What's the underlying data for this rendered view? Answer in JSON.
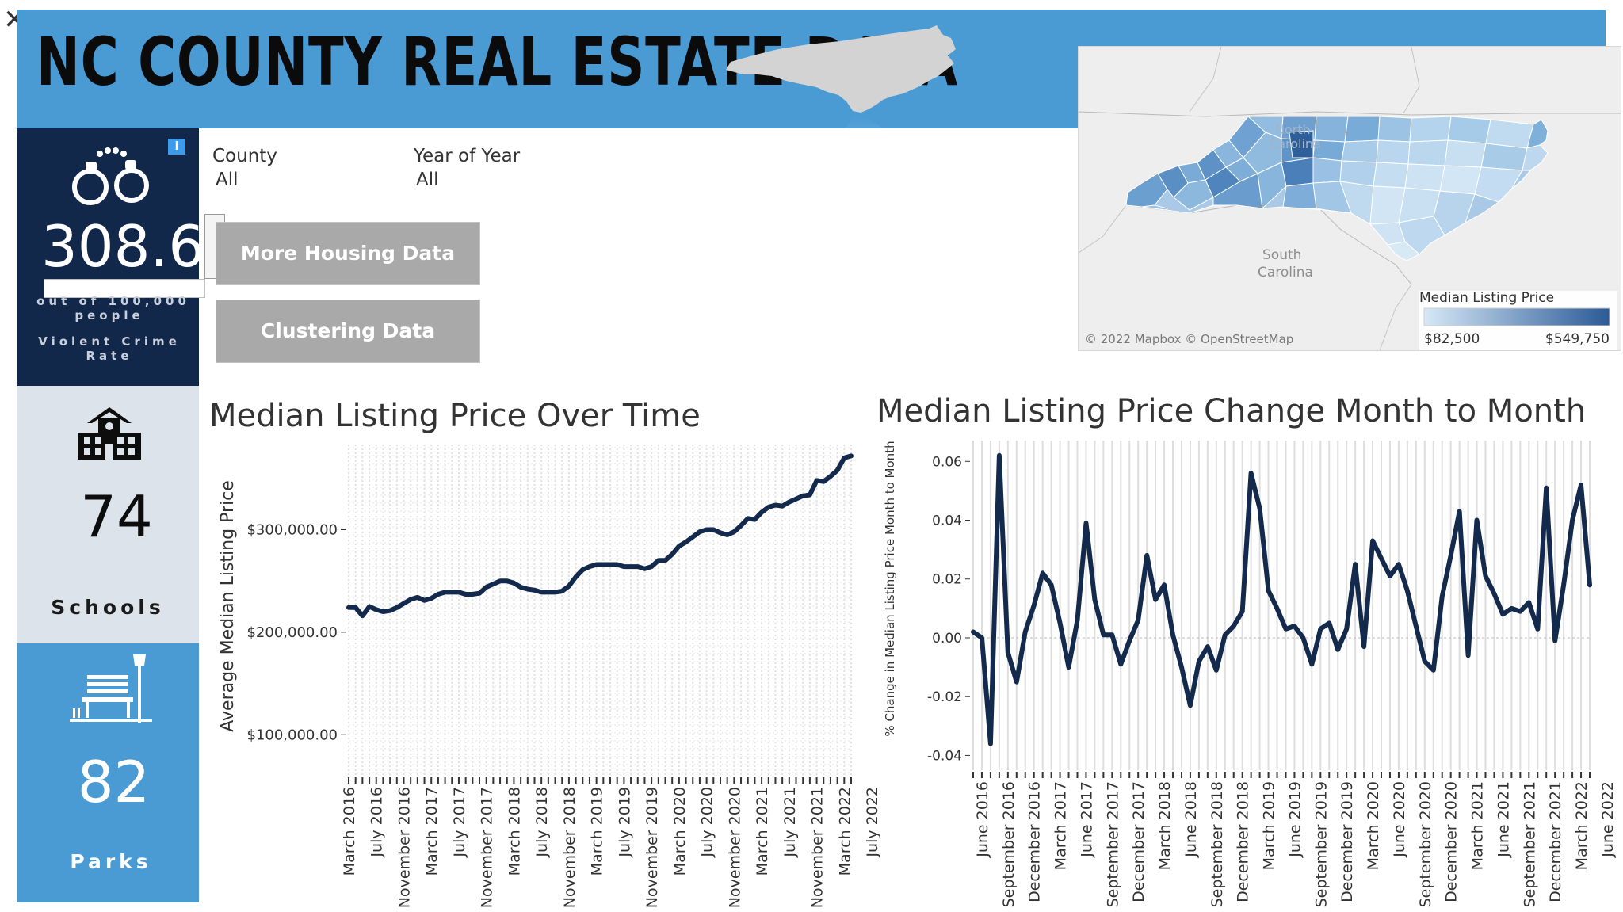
{
  "window": {
    "close_glyph": "✕"
  },
  "header": {
    "title": "NC COUNTY REAL ESTATE DATA"
  },
  "colors": {
    "banner": "#4a9ad4",
    "navy": "#12284b",
    "light_tile": "#dde3ea",
    "line": "#142a4c",
    "button": "#a9a9a9",
    "info_badge": "#3d9be9"
  },
  "icons": {
    "crime": "handcuffs-icon",
    "schools": "school-building-icon",
    "parks": "park-bench-icon",
    "info": "info-icon",
    "state": "north-carolina-silhouette-icon",
    "close": "close-icon"
  },
  "tiles": {
    "crime": {
      "value": "308.6",
      "subtitle_line1": "out of 100,000",
      "subtitle_line2": "people",
      "label": "Violent Crime Rate",
      "info_glyph": "i"
    },
    "schools": {
      "value": "74",
      "label": "Schools"
    },
    "parks": {
      "value": "82",
      "label": "Parks"
    }
  },
  "filters": [
    {
      "label": "County",
      "value": "All"
    },
    {
      "label": "Year of Year",
      "value": "All"
    }
  ],
  "buttons": {
    "housing": "More Housing Data",
    "clustering": "Clustering Data"
  },
  "map": {
    "labels": {
      "north": "North",
      "carolina": "Carolina",
      "south": "South",
      "south_carolina": "Carolina"
    },
    "attribution": "© 2022 Mapbox © OpenStreetMap",
    "legend_title": "Median Listing Price",
    "legend_min": "$82,500",
    "legend_max": "$549,750"
  },
  "chart_data": [
    {
      "type": "line",
      "title": "Median Listing Price Over Time",
      "xlabel": "",
      "ylabel": "Average Median Listing Price",
      "ylim": [
        60000,
        380000
      ],
      "yticks": [
        "$100,000.00",
        "$200,000.00",
        "$300,000.00"
      ],
      "ytick_values": [
        100000,
        200000,
        300000
      ],
      "xticks": [
        "March 2016",
        "July 2016",
        "November 2016",
        "March 2017",
        "July 2017",
        "November 2017",
        "March 2018",
        "July 2018",
        "November 2018",
        "March 2019",
        "July 2019",
        "November 2019",
        "March 2020",
        "July 2020",
        "November 2020",
        "March 2021",
        "July 2021",
        "November 2021",
        "March 2022",
        "July 2022"
      ],
      "grid": true,
      "x_start": "March 2016",
      "x_end": "July 2022",
      "values": [
        224000,
        224000,
        216000,
        225000,
        222000,
        220000,
        221000,
        224000,
        228000,
        232000,
        234000,
        231000,
        233000,
        237000,
        239000,
        239000,
        239000,
        237000,
        237000,
        238000,
        244000,
        247000,
        250000,
        250000,
        248000,
        244000,
        242000,
        241000,
        239000,
        239000,
        239000,
        240000,
        245000,
        254000,
        261000,
        264000,
        266000,
        266000,
        266000,
        266000,
        264000,
        264000,
        264000,
        262000,
        264000,
        270000,
        270000,
        276000,
        284000,
        288000,
        293000,
        298000,
        300000,
        300000,
        297000,
        295000,
        298000,
        304000,
        311000,
        310000,
        317000,
        322000,
        324000,
        323000,
        327000,
        330000,
        333000,
        334000,
        348000,
        347000,
        352000,
        358000,
        370000,
        372000
      ]
    },
    {
      "type": "line",
      "title": "Median Listing Price Change Month to Month",
      "xlabel": "",
      "ylabel": "% Change in Median Listing Price Month to Month",
      "ylim": [
        -0.045,
        0.066
      ],
      "yticks": [
        "-0.04",
        "-0.02",
        "0.00",
        "0.02",
        "0.04",
        "0.06"
      ],
      "ytick_values": [
        -0.04,
        -0.02,
        0.0,
        0.02,
        0.04,
        0.06
      ],
      "xticks": [
        "June 2016",
        "September 2016",
        "December 2016",
        "March 2017",
        "June 2017",
        "September 2017",
        "December 2017",
        "March 2018",
        "June 2018",
        "September 2018",
        "December 2018",
        "March 2019",
        "June 2019",
        "September 2019",
        "December 2019",
        "March 2020",
        "June 2020",
        "September 2020",
        "December 2020",
        "March 2021",
        "June 2021",
        "September 2021",
        "December 2021",
        "March 2022",
        "June 2022"
      ],
      "grid": true,
      "x_start": "May 2016",
      "x_end": "June 2022",
      "values": [
        0.002,
        0.0,
        -0.036,
        0.062,
        -0.005,
        -0.015,
        0.002,
        0.011,
        0.022,
        0.018,
        0.005,
        -0.01,
        0.006,
        0.039,
        0.013,
        0.001,
        0.001,
        -0.009,
        -0.001,
        0.006,
        0.028,
        0.013,
        0.018,
        0.001,
        -0.01,
        -0.023,
        -0.008,
        -0.003,
        -0.011,
        0.001,
        0.004,
        0.009,
        0.056,
        0.044,
        0.016,
        0.01,
        0.003,
        0.004,
        0.0,
        -0.009,
        0.003,
        0.005,
        -0.004,
        0.003,
        0.025,
        -0.003,
        0.033,
        0.027,
        0.021,
        0.025,
        0.016,
        0.004,
        -0.008,
        -0.011,
        0.014,
        0.028,
        0.043,
        -0.006,
        0.04,
        0.021,
        0.015,
        0.008,
        0.01,
        0.009,
        0.012,
        0.003,
        0.051,
        -0.001,
        0.018,
        0.04,
        0.052,
        0.018
      ]
    }
  ]
}
